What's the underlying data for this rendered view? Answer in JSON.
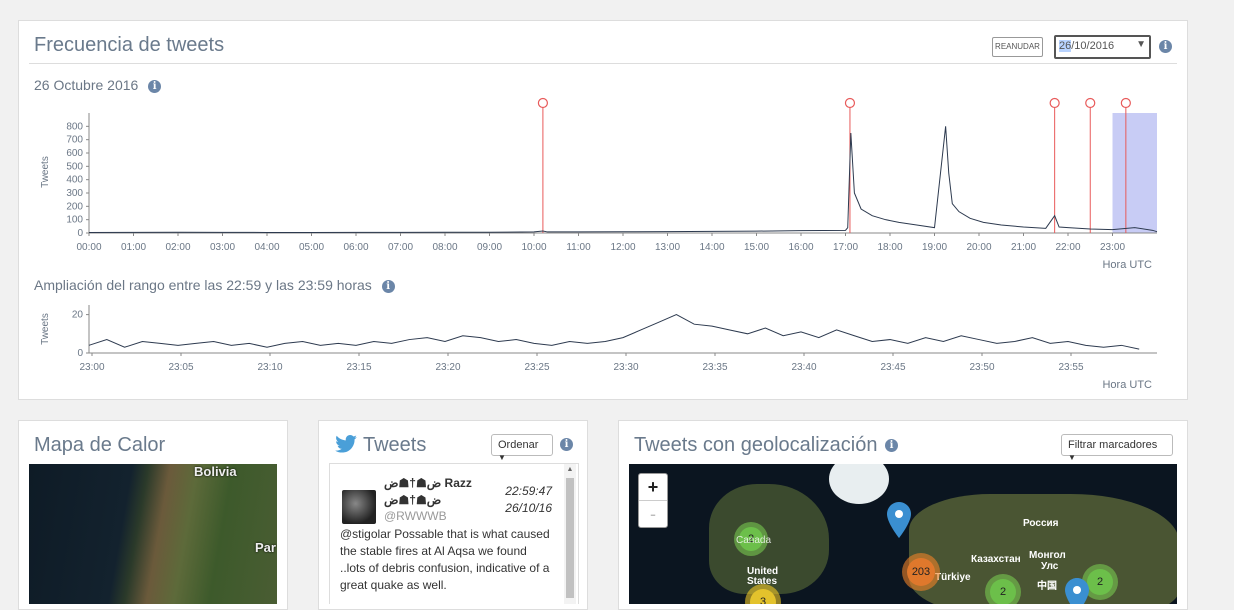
{
  "frecuencia": {
    "title": "Frecuencia de tweets",
    "resume_label": "REANUDAR",
    "date_value_highlight": "26",
    "date_value_rest": "/10/2016",
    "date_label": "26 Octubre 2016",
    "zoom_label": "Ampliación del rango entre las 22:59 y las 23:59 horas"
  },
  "chart_data": [
    {
      "type": "line",
      "ylabel": "Tweets",
      "xlabel": "Hora UTC",
      "ylim": [
        0,
        900
      ],
      "yticks": [
        "0",
        "100",
        "200",
        "300",
        "400",
        "500",
        "600",
        "700",
        "800"
      ],
      "xticks": [
        "00:00",
        "01:00",
        "02:00",
        "03:00",
        "04:00",
        "05:00",
        "06:00",
        "07:00",
        "08:00",
        "09:00",
        "10:00",
        "11:00",
        "12:00",
        "13:00",
        "14:00",
        "15:00",
        "16:00",
        "17:00",
        "18:00",
        "19:00",
        "20:00",
        "21:00",
        "22:00",
        "23:00"
      ],
      "x_hours": [
        0,
        1,
        2,
        3,
        4,
        5,
        6,
        7,
        8,
        9,
        10,
        10.2,
        10.3,
        11,
        12,
        13,
        14,
        15,
        16,
        17,
        17.05,
        17.12,
        17.2,
        17.35,
        17.6,
        17.9,
        18.2,
        18.6,
        19.0,
        19.25,
        19.32,
        19.4,
        19.55,
        19.8,
        20.1,
        20.5,
        21.0,
        21.5,
        21.7,
        21.8,
        22.0,
        22.5,
        23.0,
        23.5,
        23.9,
        24
      ],
      "values": [
        4,
        5,
        6,
        5,
        4,
        4,
        5,
        5,
        6,
        6,
        8,
        15,
        8,
        8,
        9,
        10,
        12,
        14,
        18,
        20,
        40,
        750,
        300,
        180,
        130,
        100,
        80,
        60,
        40,
        800,
        450,
        220,
        160,
        110,
        80,
        60,
        45,
        35,
        130,
        45,
        40,
        30,
        25,
        40,
        20,
        10
      ],
      "markers_hours": [
        10.2,
        17.1,
        21.7,
        22.5,
        23.3
      ],
      "selection_hours": [
        23.0,
        24.0
      ]
    },
    {
      "type": "line",
      "ylabel": "Tweets",
      "xlabel": "Hora UTC",
      "ylim": [
        0,
        25
      ],
      "yticks": [
        "0",
        "20"
      ],
      "xticks": [
        "23:00",
        "23:05",
        "23:10",
        "23:15",
        "23:20",
        "23:25",
        "23:30",
        "23:35",
        "23:40",
        "23:45",
        "23:50",
        "23:55"
      ],
      "x_minutes": [
        0,
        1,
        2,
        3,
        4,
        5,
        6,
        7,
        8,
        9,
        10,
        11,
        12,
        13,
        14,
        15,
        16,
        17,
        18,
        19,
        20,
        21,
        22,
        23,
        24,
        25,
        26,
        27,
        28,
        29,
        30,
        31,
        32,
        33,
        34,
        35,
        36,
        37,
        38,
        39,
        40,
        41,
        42,
        43,
        44,
        45,
        46,
        47,
        48,
        49,
        50,
        51,
        52,
        53,
        54,
        55,
        56,
        57,
        58,
        59
      ],
      "values": [
        4,
        7,
        3,
        6,
        5,
        4,
        5,
        6,
        4,
        5,
        3,
        5,
        6,
        4,
        5,
        4,
        6,
        5,
        7,
        8,
        6,
        9,
        8,
        6,
        7,
        5,
        4,
        6,
        5,
        6,
        8,
        12,
        16,
        20,
        15,
        14,
        12,
        10,
        13,
        9,
        11,
        8,
        12,
        9,
        6,
        7,
        5,
        8,
        6,
        9,
        7,
        5,
        6,
        8,
        5,
        6,
        4,
        3,
        4,
        2
      ]
    }
  ],
  "mapa": {
    "title": "Mapa de Calor",
    "labels": [
      "Bolivia",
      "Par"
    ]
  },
  "tweets": {
    "title": "Tweets",
    "sort_label": "Ordenar",
    "items": [
      {
        "name": "ض☗†☗ض Razz",
        "name_line2": "ض☗†☗ض",
        "handle": "@RWWWB",
        "time": "22:59:47",
        "date": "26/10/16",
        "text": "@stigolar Possable that is what caused the stable fires at Al Aqsa we found ..lots of debris confusion, indicative of a great quake as well."
      }
    ]
  },
  "geo": {
    "title": "Tweets con geolocalización",
    "filter_label": "Filtrar marcadores",
    "zoom_in": "+",
    "zoom_out": "-",
    "labels": [
      "Россия",
      "Казахстан",
      "Монгол",
      "Улс",
      "中国",
      "Türkiye",
      "United",
      "States",
      "Canada"
    ],
    "clusters": [
      "2",
      "203",
      "2",
      "2",
      "3"
    ]
  },
  "colors": {
    "line": "#2d3a4f",
    "marker": "#e85a5a",
    "selection": "#aab0f0",
    "axis": "#888"
  }
}
